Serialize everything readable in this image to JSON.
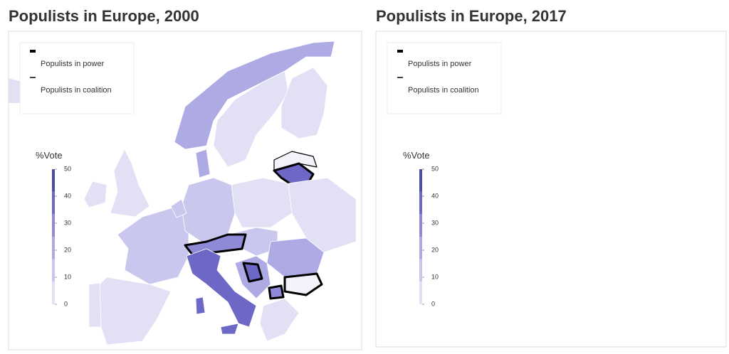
{
  "panels": [
    {
      "title": "Populists in Europe, 2000",
      "legend": [
        "Populists in power",
        "Populists in coalition"
      ],
      "colorbar": {
        "title": "%Vote",
        "ticks": [
          50,
          40,
          30,
          20,
          10,
          0
        ]
      }
    },
    {
      "title": "Populists in Europe, 2017",
      "legend": [
        "Populists in power",
        "Populists in coalition"
      ],
      "colorbar": {
        "title": "%Vote",
        "ticks": [
          50,
          40,
          30,
          20,
          10,
          0
        ]
      }
    }
  ]
}
